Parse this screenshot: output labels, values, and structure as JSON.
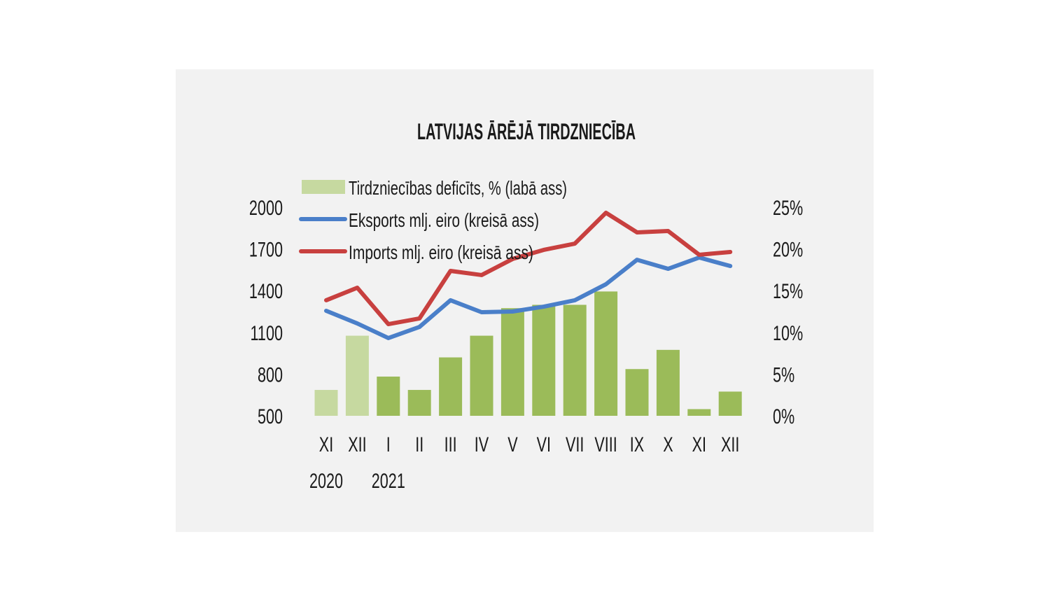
{
  "chart_data": {
    "type": "bar+line",
    "title": "LATVIJAS ĀRĒJĀ TIRDZNIECĪBA",
    "categories": [
      "XI",
      "XII",
      "I",
      "II",
      "III",
      "IV",
      "V",
      "VI",
      "VII",
      "VIII",
      "IX",
      "X",
      "XI",
      "XII"
    ],
    "year_labels": [
      {
        "index": 0,
        "label": "2020"
      },
      {
        "index": 2,
        "label": "2021"
      }
    ],
    "left_axis": {
      "ylim": [
        500,
        2000
      ],
      "ticks": [
        "2000",
        "1700",
        "1400",
        "1100",
        "800",
        "500"
      ],
      "tick_values": [
        2000,
        1700,
        1400,
        1100,
        800,
        500
      ]
    },
    "right_axis": {
      "ylim": [
        0,
        25
      ],
      "ticks": [
        "25%",
        "20%",
        "15%",
        "10%",
        "5%",
        "0%"
      ],
      "tick_values": [
        25,
        20,
        15,
        10,
        5,
        0
      ]
    },
    "grid": false,
    "legend_placement": "top-left",
    "series": [
      {
        "name": "Tirdzniecības deficīts, % (labā ass)",
        "type": "bar",
        "axis": "right",
        "color": "#9bbb59",
        "color_2020": "#c6d9a0",
        "values": [
          3.1,
          9.6,
          4.7,
          3.1,
          7.0,
          9.6,
          12.9,
          13.3,
          13.3,
          14.9,
          5.6,
          7.9,
          0.8,
          2.9
        ]
      },
      {
        "name": "Eksports mlj. eiro (kreisā ass)",
        "type": "line",
        "axis": "left",
        "color": "#4a7fc9",
        "values": [
          1255,
          1164,
          1059,
          1139,
          1331,
          1245,
          1250,
          1285,
          1331,
          1446,
          1622,
          1557,
          1638,
          1577
        ]
      },
      {
        "name": "Imports mlj. eiro (kreisā ass)",
        "type": "line",
        "axis": "left",
        "color": "#c8403f",
        "values": [
          1331,
          1421,
          1159,
          1200,
          1542,
          1512,
          1628,
          1693,
          1738,
          1960,
          1819,
          1829,
          1658,
          1678
        ]
      }
    ],
    "background": "#f2f2f2"
  }
}
